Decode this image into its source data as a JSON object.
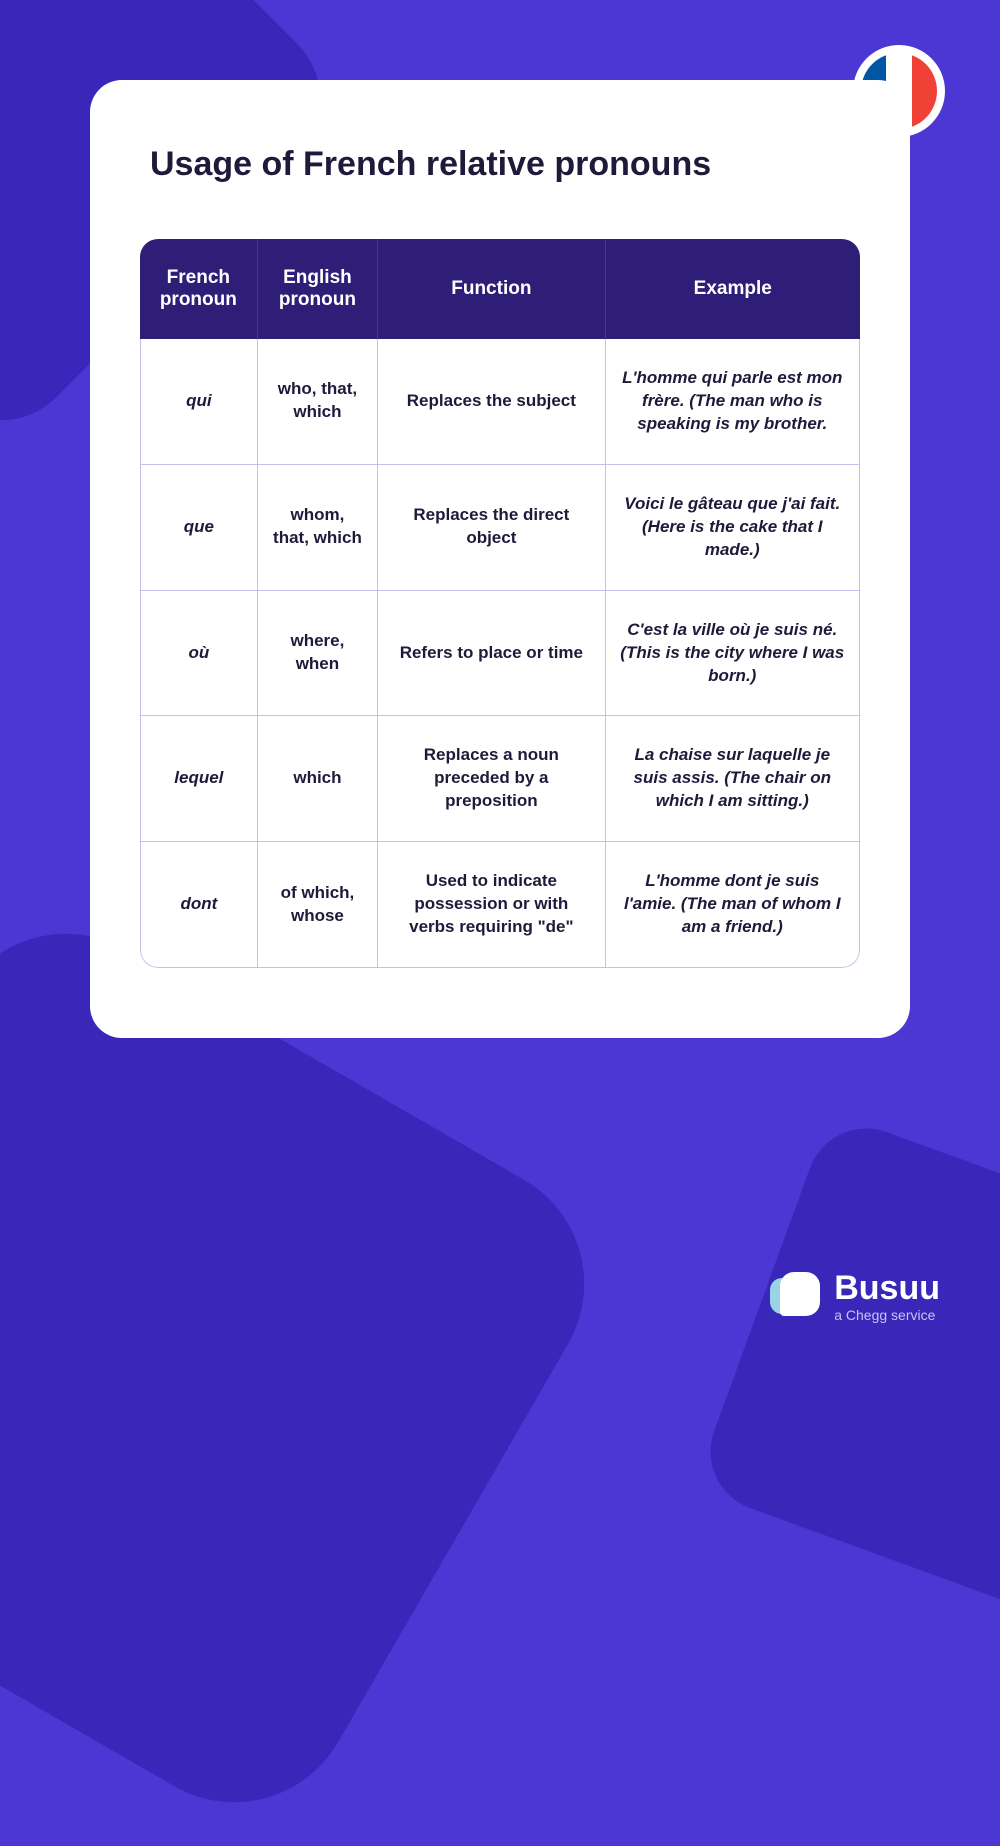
{
  "colors": {
    "page_bg": "#4c37d4",
    "shape_bg": "#3a26b8",
    "card_bg": "#ffffff",
    "header_bg": "#2e1e77",
    "header_divider": "#433591",
    "cell_border": "#c6c0ec",
    "text_dark": "#1e1b3a",
    "flag_blue": "#0055a4",
    "flag_white": "#ffffff",
    "flag_red": "#ef4135",
    "logo_accent": "#98d4e8",
    "tagline_color": "#c9c2f0"
  },
  "typography": {
    "title_fontsize": 34,
    "title_weight": 800,
    "header_fontsize": 19,
    "cell_fontsize": 17,
    "brand_fontsize": 34,
    "tagline_fontsize": 14
  },
  "title": "Usage of French relative pronouns",
  "table": {
    "columns": [
      "French pronoun",
      "English pronoun",
      "Function",
      "Example"
    ],
    "rows": [
      {
        "french": "qui",
        "english": "who, that, which",
        "func": "Replaces the subject",
        "example": "L'homme qui parle est mon frère. (The man who is speaking is my brother."
      },
      {
        "french": "que",
        "english": "whom, that, which",
        "func": "Replaces the direct object",
        "example": "Voici le gâteau que j'ai fait. (Here is the cake that I made.)"
      },
      {
        "french": "où",
        "english": "where, when",
        "func": "Refers to place or time",
        "example": "C'est la ville où je suis né. (This is the city where I was born.)"
      },
      {
        "french": "lequel",
        "english": "which",
        "func": "Replaces a noun preceded by a preposition",
        "example": "La chaise sur laquelle je suis assis. (The chair on which I am sitting.)"
      },
      {
        "french": "dont",
        "english": "of which, whose",
        "func": "Used to indicate possession or with verbs requiring \"de\"",
        "example": "L'homme dont je suis l'amie. (The man of whom I am a friend.)"
      }
    ]
  },
  "footer": {
    "brand": "Busuu",
    "tagline": "a Chegg service"
  }
}
